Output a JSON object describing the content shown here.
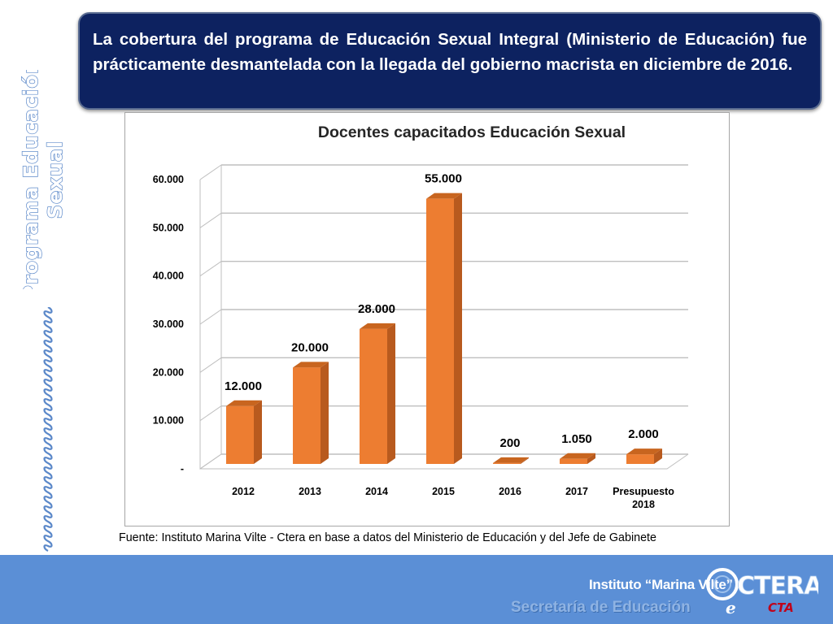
{
  "side": {
    "title_line1": "Programa Educación",
    "title_line2": "Sexual"
  },
  "header": {
    "text": "La cobertura del programa de Educación Sexual Integral (Ministerio de Educación) fue prácticamente desmantelada con la llegada del gobierno macrista en diciembre de 2016."
  },
  "chart_data": {
    "type": "bar",
    "title": "Docentes capacitados Educación Sexual",
    "categories": [
      "2012",
      "2013",
      "2014",
      "2015",
      "2016",
      "2017",
      "Presupuesto 2018"
    ],
    "values": [
      12000,
      20000,
      28000,
      55000,
      200,
      1050,
      2000
    ],
    "data_labels": [
      "12.000",
      "20.000",
      "28.000",
      "55.000",
      "200",
      "1.050",
      "2.000"
    ],
    "yticks": [
      0,
      10000,
      20000,
      30000,
      40000,
      50000,
      60000
    ],
    "ytick_labels": [
      "-",
      "10.000",
      "20.000",
      "30.000",
      "40.000",
      "50.000",
      "60.000"
    ],
    "ylim": [
      0,
      60000
    ],
    "xlabel": "",
    "ylabel": "",
    "grid": true,
    "bar_color": "#ed7d31",
    "bar_side_color": "#b85a1e",
    "bar_top_color": "#c8651f"
  },
  "source": "Fuente: Instituto Marina Vilte - Ctera en base a datos del Ministerio de Educación y del Jefe de Gabinete",
  "footer": {
    "institute": "Instituto “Marina Vilte”",
    "secretaria": "Secretaría de Educación",
    "logo_text": "CTERA",
    "logo_sub": "CTA",
    "logo_e": "e"
  },
  "colors": {
    "header_bg": "#0d2260",
    "footer_bg": "#5b8fd6",
    "side_title_outline": "#5b88c9",
    "bar": "#ed7d31"
  }
}
